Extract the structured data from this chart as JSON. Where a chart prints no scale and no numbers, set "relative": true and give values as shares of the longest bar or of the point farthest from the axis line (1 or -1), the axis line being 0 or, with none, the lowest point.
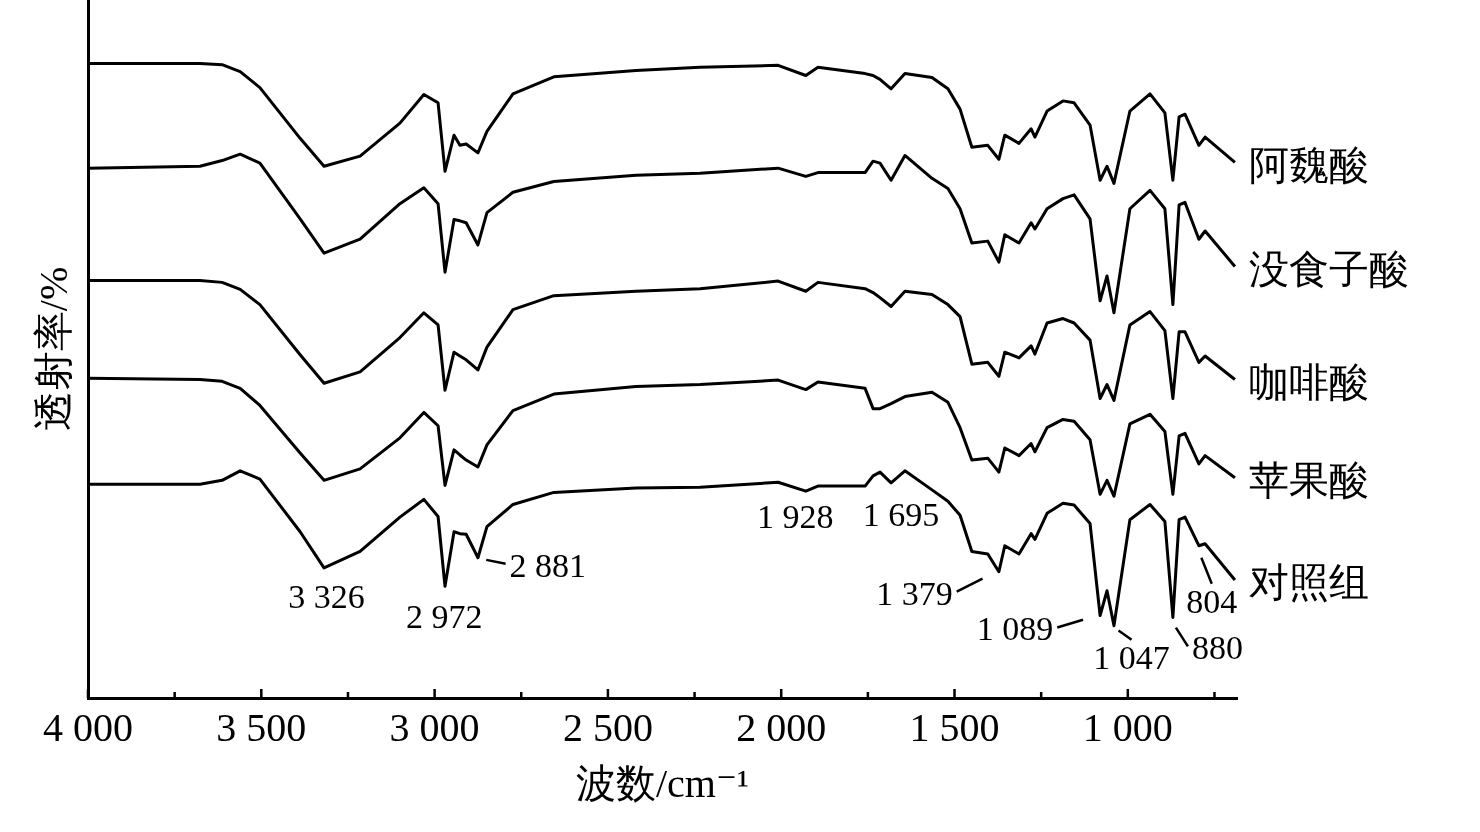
{
  "chart_data": {
    "type": "line",
    "relative": true,
    "xlabel": "波数/cm⁻¹",
    "ylabel": "透射率/%",
    "tick_labels": "x",
    "xlim": [
      4000,
      685
    ],
    "xticks": [
      {
        "value": 4000,
        "label": "4 000"
      },
      {
        "value": 3750,
        "label": null
      },
      {
        "value": 3500,
        "label": "3 500"
      },
      {
        "value": 3250,
        "label": null
      },
      {
        "value": 3000,
        "label": "3 000"
      },
      {
        "value": 2750,
        "label": null
      },
      {
        "value": 2500,
        "label": "2 500"
      },
      {
        "value": 2250,
        "label": null
      },
      {
        "value": 2000,
        "label": "2 000"
      },
      {
        "value": 1750,
        "label": null
      },
      {
        "value": 1500,
        "label": "1 500"
      },
      {
        "value": 1250,
        "label": null
      },
      {
        "value": 1000,
        "label": "1 000"
      },
      {
        "value": 750,
        "label": null
      }
    ],
    "x": [
      4000,
      3677,
      3613,
      3561,
      3504,
      3388,
      3319,
      3215,
      3100,
      3031,
      2990,
      2970,
      2944,
      2927,
      2909,
      2875,
      2849,
      2774,
      2656,
      2419,
      2234,
      2009,
      1929,
      1894,
      1758,
      1735,
      1715,
      1683,
      1643,
      1565,
      1519,
      1484,
      1450,
      1404,
      1372,
      1355,
      1314,
      1279,
      1268,
      1233,
      1187,
      1155,
      1109,
      1080,
      1060,
      1040,
      994,
      936,
      893,
      870,
      852,
      835,
      795,
      777,
      691
    ],
    "series": [
      {
        "name": "阿魏酸",
        "color": "#000000",
        "values": [
          1.0,
          1.0,
          0.998,
          0.987,
          0.962,
          0.882,
          0.838,
          0.854,
          0.906,
          0.951,
          0.938,
          0.83,
          0.887,
          0.871,
          0.873,
          0.859,
          0.893,
          0.952,
          0.979,
          0.989,
          0.994,
          0.997,
          0.981,
          0.994,
          0.984,
          0.981,
          0.975,
          0.96,
          0.984,
          0.978,
          0.96,
          0.928,
          0.868,
          0.871,
          0.849,
          0.887,
          0.874,
          0.897,
          0.884,
          0.925,
          0.941,
          0.938,
          0.903,
          0.816,
          0.838,
          0.811,
          0.925,
          0.952,
          0.922,
          0.816,
          0.916,
          0.92,
          0.871,
          0.884,
          0.844
        ]
      },
      {
        "name": "没食子酸",
        "color": "#000000",
        "values": [
          0.835,
          0.838,
          0.847,
          0.857,
          0.843,
          0.755,
          0.701,
          0.723,
          0.779,
          0.804,
          0.779,
          0.671,
          0.754,
          0.752,
          0.749,
          0.714,
          0.765,
          0.797,
          0.814,
          0.824,
          0.827,
          0.835,
          0.822,
          0.828,
          0.828,
          0.846,
          0.843,
          0.816,
          0.855,
          0.819,
          0.803,
          0.771,
          0.717,
          0.72,
          0.687,
          0.73,
          0.717,
          0.749,
          0.739,
          0.771,
          0.787,
          0.793,
          0.755,
          0.626,
          0.665,
          0.607,
          0.771,
          0.8,
          0.771,
          0.62,
          0.777,
          0.781,
          0.723,
          0.736,
          0.68
        ]
      },
      {
        "name": "咖啡酸",
        "color": "#000000",
        "values": [
          0.658,
          0.658,
          0.655,
          0.644,
          0.62,
          0.541,
          0.496,
          0.514,
          0.568,
          0.607,
          0.588,
          0.485,
          0.545,
          0.539,
          0.533,
          0.517,
          0.553,
          0.612,
          0.634,
          0.641,
          0.645,
          0.657,
          0.641,
          0.655,
          0.645,
          0.639,
          0.631,
          0.617,
          0.641,
          0.636,
          0.62,
          0.601,
          0.526,
          0.529,
          0.507,
          0.545,
          0.536,
          0.555,
          0.542,
          0.591,
          0.598,
          0.591,
          0.564,
          0.472,
          0.494,
          0.469,
          0.588,
          0.609,
          0.579,
          0.472,
          0.577,
          0.577,
          0.529,
          0.539,
          0.502
        ]
      },
      {
        "name": "苹果酸",
        "color": "#000000",
        "values": [
          0.504,
          0.502,
          0.499,
          0.488,
          0.461,
          0.386,
          0.343,
          0.361,
          0.41,
          0.45,
          0.429,
          0.335,
          0.391,
          0.383,
          0.375,
          0.364,
          0.399,
          0.453,
          0.479,
          0.491,
          0.494,
          0.501,
          0.486,
          0.498,
          0.488,
          0.456,
          0.456,
          0.464,
          0.475,
          0.482,
          0.466,
          0.426,
          0.375,
          0.378,
          0.356,
          0.394,
          0.382,
          0.401,
          0.388,
          0.426,
          0.439,
          0.436,
          0.407,
          0.321,
          0.343,
          0.318,
          0.432,
          0.447,
          0.42,
          0.321,
          0.413,
          0.417,
          0.369,
          0.382,
          0.347
        ]
      },
      {
        "name": "对照组",
        "color": "#000000",
        "values": [
          0.337,
          0.337,
          0.343,
          0.358,
          0.345,
          0.262,
          0.205,
          0.231,
          0.285,
          0.313,
          0.286,
          0.176,
          0.262,
          0.259,
          0.258,
          0.221,
          0.27,
          0.305,
          0.324,
          0.331,
          0.332,
          0.34,
          0.326,
          0.334,
          0.334,
          0.35,
          0.356,
          0.339,
          0.358,
          0.328,
          0.31,
          0.288,
          0.231,
          0.227,
          0.199,
          0.24,
          0.227,
          0.259,
          0.25,
          0.291,
          0.307,
          0.304,
          0.275,
          0.13,
          0.169,
          0.114,
          0.281,
          0.305,
          0.278,
          0.127,
          0.281,
          0.285,
          0.24,
          0.243,
          0.186
        ]
      }
    ],
    "annotations": [
      {
        "text": "3 326",
        "x": 3326,
        "y": 0.205
      },
      {
        "text": "2 972",
        "x": 2972,
        "y": 0.176
      },
      {
        "text": "2 881",
        "x": 2881,
        "y": 0.221
      },
      {
        "text": "1 928",
        "x": 1928,
        "y": 0.326
      },
      {
        "text": "1 695",
        "x": 1695,
        "y": 0.345
      },
      {
        "text": "1 379",
        "x": 1379,
        "y": 0.199
      },
      {
        "text": "1 089",
        "x": 1089,
        "y": 0.13
      },
      {
        "text": "1 047",
        "x": 1047,
        "y": 0.114
      },
      {
        "text": "880",
        "x": 880,
        "y": 0.127
      },
      {
        "text": "804",
        "x": 804,
        "y": 0.243
      }
    ]
  }
}
